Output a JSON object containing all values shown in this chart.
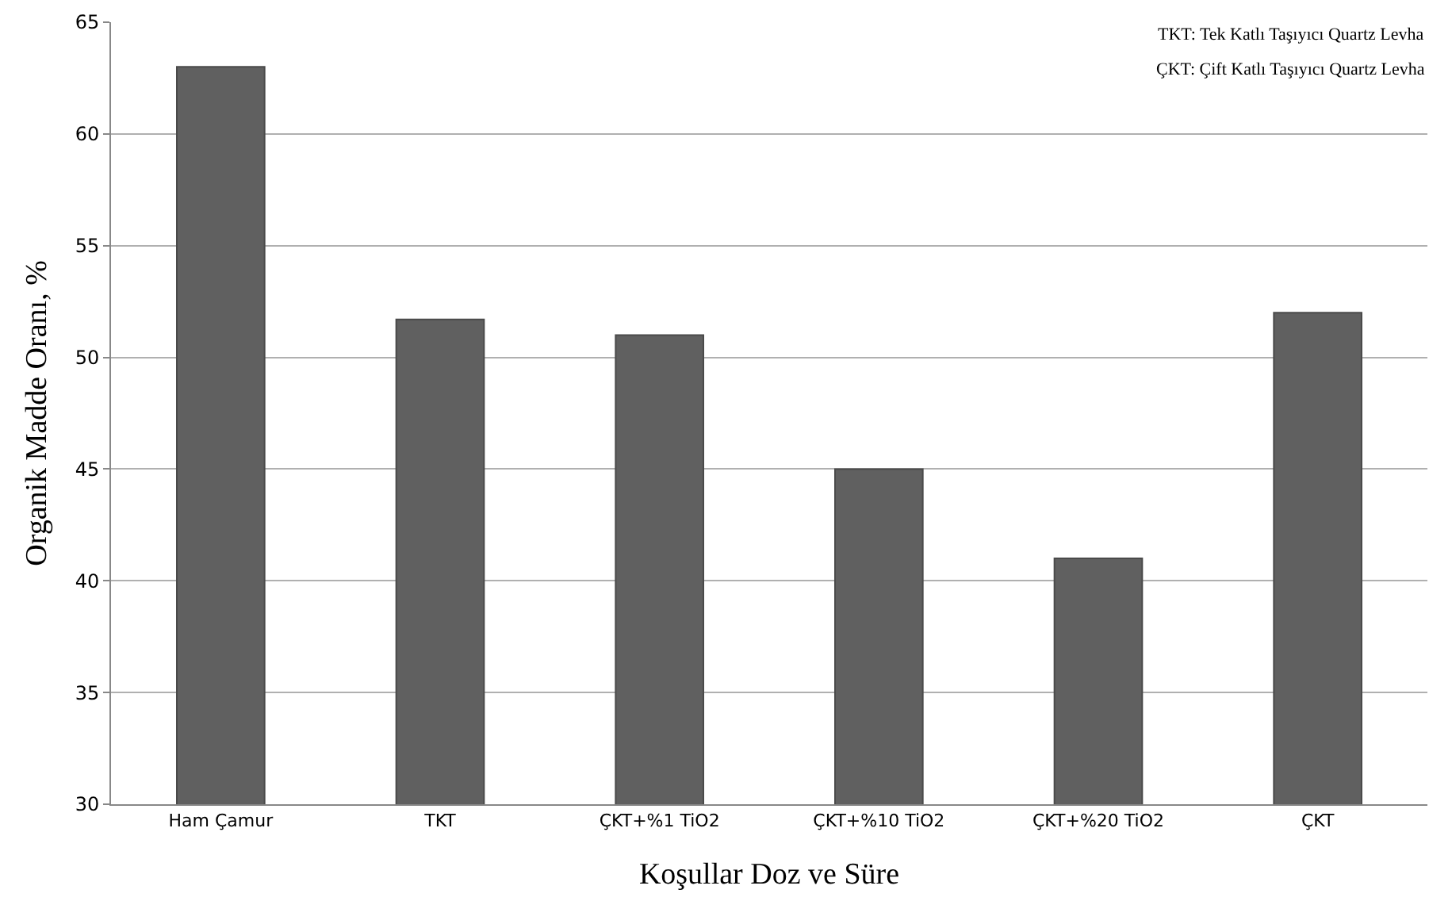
{
  "chart_data": {
    "type": "bar",
    "xlabel": "Koşullar Doz ve Süre",
    "ylabel": "Organik Madde Oranı, %",
    "categories": [
      "Ham Çamur",
      "TKT",
      "ÇKT+%1 TiO2",
      "ÇKT+%10 TiO2",
      "ÇKT+%20 TiO2",
      "ÇKT"
    ],
    "values": [
      63,
      51.7,
      51,
      45,
      41,
      52
    ],
    "color": "#606060",
    "ylim": [
      30,
      65
    ],
    "yticks": [
      30,
      35,
      40,
      45,
      50,
      55,
      60,
      65
    ],
    "grid": "y",
    "legend": false,
    "annotations": [
      "TKT: Tek Katlı Taşıyıcı Quartz Levha",
      "ÇKT: Çift Katlı Taşıyıcı Quartz Levha"
    ]
  }
}
